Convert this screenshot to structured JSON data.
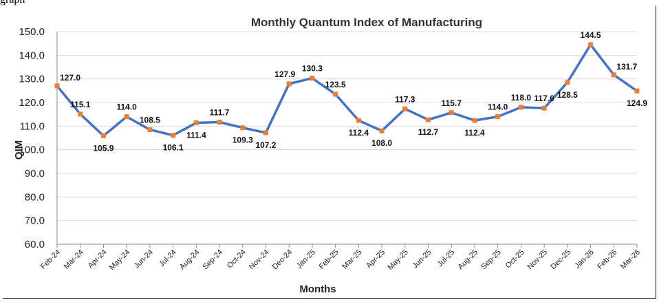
{
  "page": {
    "top_fragment": "graph"
  },
  "chart_data": {
    "type": "line",
    "title": "Monthly Quantum Index of Manufacturing",
    "xlabel": "Months",
    "ylabel": "QIM",
    "ylim": [
      60,
      150
    ],
    "yticks": [
      "60.0",
      "70.0",
      "80.0",
      "90.0",
      "100.0",
      "110.0",
      "120.0",
      "130.0",
      "140.0",
      "150.0"
    ],
    "grid": true,
    "legend": "none",
    "colors": {
      "line": "#4472C4",
      "marker": "#ED7D31",
      "grid": "#d9d9d9"
    },
    "categories": [
      "Feb-24",
      "Mar-24",
      "Apr-24",
      "May-24",
      "Jun-24",
      "Jul-24",
      "Aug-24",
      "Sep-24",
      "Oct-24",
      "Nov-24",
      "Dec-24",
      "Jan-25",
      "Feb-25",
      "Mar-25",
      "Apr-25",
      "May-25",
      "Jun-25",
      "Jul-25",
      "Aug-25",
      "Sep-25",
      "Oct-25",
      "Nov-25",
      "Dec-25",
      "Jan-26",
      "Feb-26",
      "Mar-26"
    ],
    "values": [
      127.0,
      115.1,
      105.9,
      114.0,
      108.5,
      106.1,
      111.4,
      111.7,
      109.3,
      107.2,
      127.9,
      130.3,
      123.5,
      112.4,
      108.0,
      117.3,
      112.7,
      115.7,
      112.4,
      114.0,
      118.0,
      117.6,
      128.5,
      144.5,
      131.7,
      124.9
    ],
    "value_labels": [
      "127.0",
      "115.1",
      "105.9",
      "114.0",
      "108.5",
      "106.1",
      "111.4",
      "111.7",
      "109.3",
      "107.2",
      "127.9",
      "130.3",
      "123.5",
      "112.4",
      "108.0",
      "117.3",
      "112.7",
      "115.7",
      "112.4",
      "114.0",
      "118.0",
      "117.6",
      "128.5",
      "144.5",
      "131.7",
      "124.9"
    ]
  }
}
